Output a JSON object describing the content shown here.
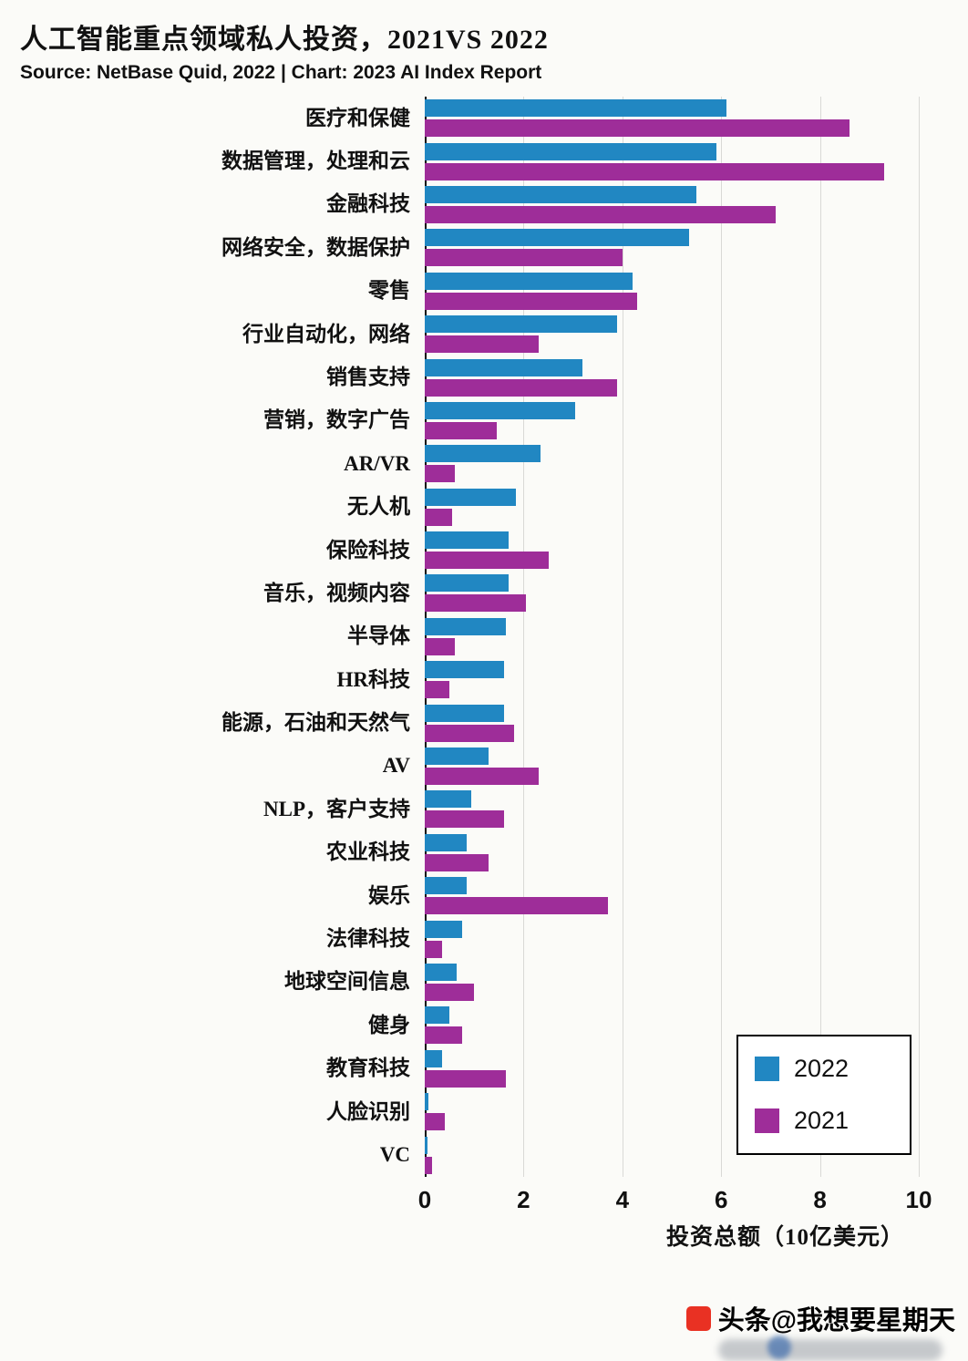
{
  "header": {
    "title": "人工智能重点领域私人投资，2021VS 2022",
    "source": "Source: NetBase Quid, 2022 | Chart: 2023 AI Index Report"
  },
  "chart_data": {
    "type": "bar",
    "orientation": "horizontal",
    "title": "人工智能重点领域私人投资，2021VS 2022",
    "xlabel": "投资总额（10亿美元）",
    "xlim": [
      0,
      10
    ],
    "xticks": [
      0,
      2,
      4,
      6,
      8,
      10
    ],
    "grid": true,
    "legend_position": "inside-bottom-right",
    "categories": [
      "医疗和保健",
      "数据管理，处理和云",
      "金融科技",
      "网络安全，数据保护",
      "零售",
      "行业自动化，网络",
      "销售支持",
      "营销，数字广告",
      "AR/VR",
      "无人机",
      "保险科技",
      "音乐，视频内容",
      "半导体",
      "HR科技",
      "能源，石油和天然气",
      "AV",
      "NLP，客户支持",
      "农业科技",
      "娱乐",
      "法律科技",
      "地球空间信息",
      "健身",
      "教育科技",
      "人脸识别",
      "VC"
    ],
    "series": [
      {
        "name": "2022",
        "color": "#2187c2",
        "values": [
          6.1,
          5.9,
          5.5,
          5.35,
          4.2,
          3.9,
          3.2,
          3.05,
          2.35,
          1.85,
          1.7,
          1.7,
          1.65,
          1.6,
          1.6,
          1.3,
          0.95,
          0.85,
          0.85,
          0.75,
          0.65,
          0.5,
          0.35,
          0.07,
          0.05
        ]
      },
      {
        "name": "2021",
        "color": "#9e2d99",
        "values": [
          8.6,
          9.3,
          7.1,
          4.0,
          4.3,
          2.3,
          3.9,
          1.45,
          0.6,
          0.55,
          2.5,
          2.05,
          0.6,
          0.5,
          1.8,
          2.3,
          1.6,
          1.3,
          3.7,
          0.35,
          1.0,
          0.75,
          1.65,
          0.4,
          0.15
        ]
      }
    ]
  },
  "legend": {
    "items": [
      {
        "label": "2022",
        "color": "#2187c2"
      },
      {
        "label": "2021",
        "color": "#9e2d99"
      }
    ]
  },
  "watermark": {
    "text": "头条@我想要星期天",
    "icon_color": "#e93123"
  },
  "colors": {
    "series_2022": "#2187c2",
    "series_2021": "#9e2d99",
    "gridline": "#d9d9d6",
    "axis": "#111111",
    "background": "#fbfbf8"
  }
}
